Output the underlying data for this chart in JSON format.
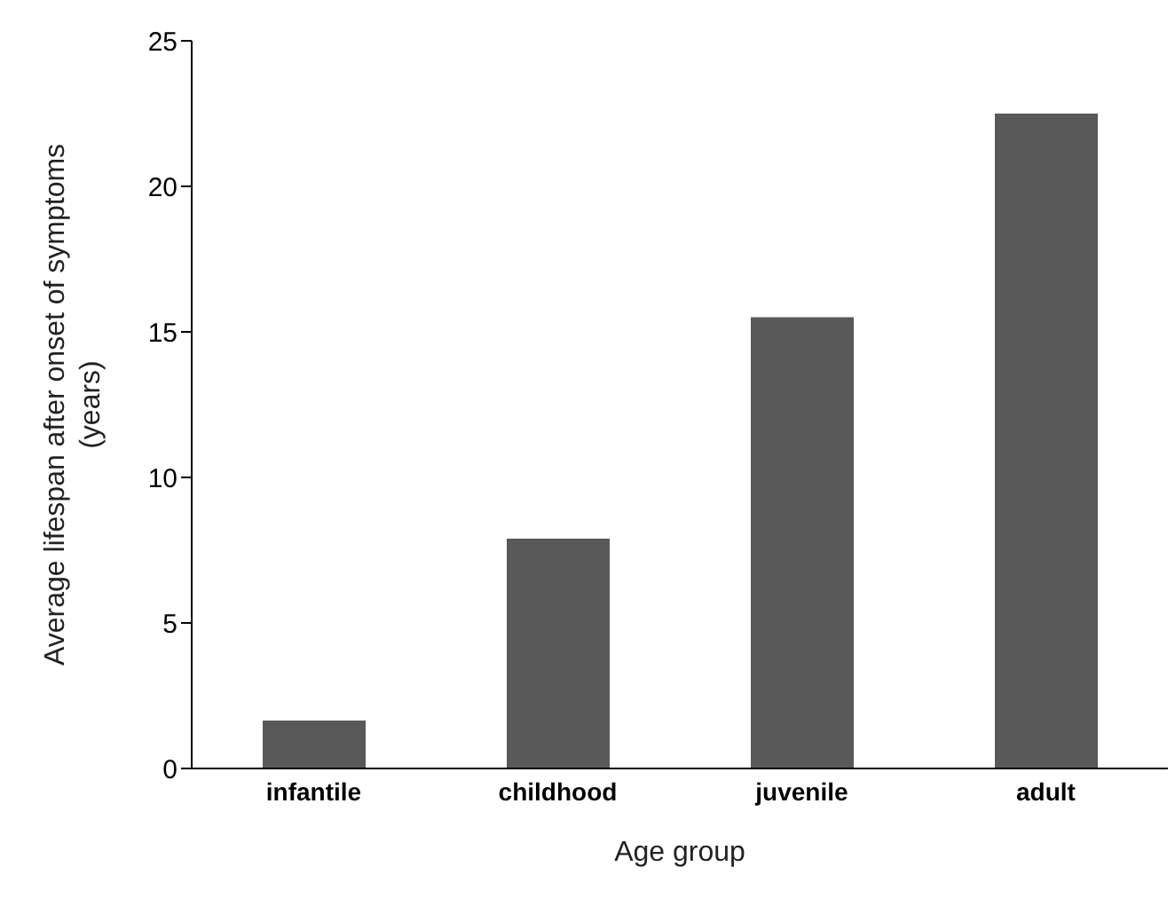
{
  "chart_data": {
    "type": "bar",
    "xlabel": "Age group",
    "ylabel": "Average lifespan after onset of symptoms (years)",
    "categories": [
      "infantile",
      "childhood",
      "juvenile",
      "adult"
    ],
    "values": [
      1.65,
      7.9,
      15.5,
      22.5
    ],
    "color": "#595959",
    "ylim": [
      0,
      25
    ],
    "yticks": [
      0,
      5,
      10,
      15,
      20,
      25
    ],
    "grid": false,
    "legend": false
  }
}
